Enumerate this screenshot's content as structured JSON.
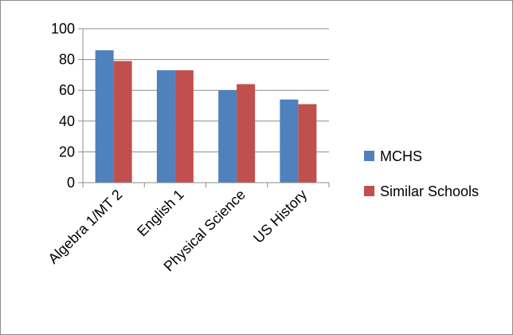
{
  "chart_data": {
    "type": "bar",
    "title": "",
    "xlabel": "",
    "ylabel": "",
    "categories": [
      "Algebra 1/MT 2",
      "English 1",
      "Physical Science",
      "US History"
    ],
    "series": [
      {
        "name": "MCHS",
        "color": "#4f81bd",
        "values": [
          86,
          73,
          60,
          54
        ]
      },
      {
        "name": "Similar Schools",
        "color": "#c0504d",
        "values": [
          79,
          73,
          64,
          51
        ]
      }
    ],
    "ylim": [
      0,
      100
    ],
    "yticks": [
      0,
      20,
      40,
      60,
      80,
      100
    ],
    "grid": true,
    "legend": "right"
  }
}
